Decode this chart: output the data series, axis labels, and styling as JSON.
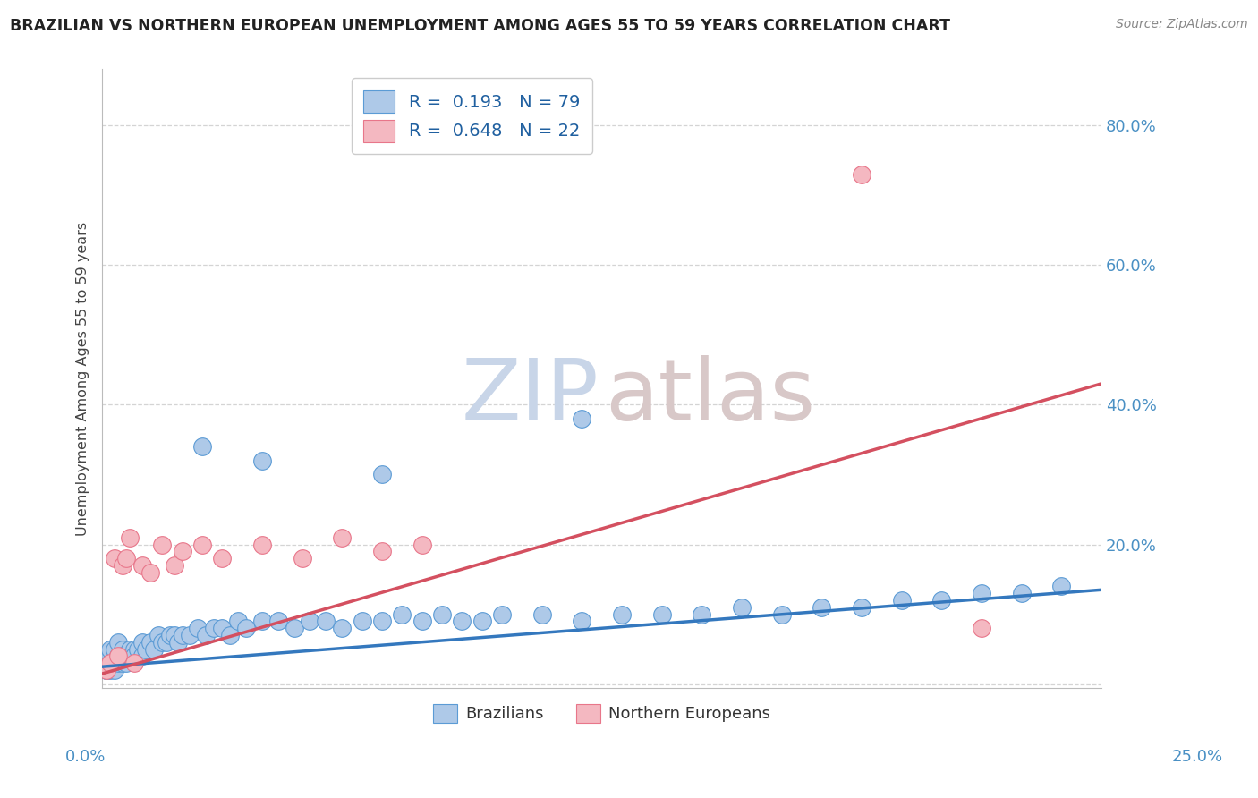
{
  "title": "BRAZILIAN VS NORTHERN EUROPEAN UNEMPLOYMENT AMONG AGES 55 TO 59 YEARS CORRELATION CHART",
  "source_text": "Source: ZipAtlas.com",
  "ylabel": "Unemployment Among Ages 55 to 59 years",
  "xlim": [
    0.0,
    0.25
  ],
  "ylim": [
    -0.005,
    0.88
  ],
  "brazil_R": 0.193,
  "brazil_N": 79,
  "northern_R": 0.648,
  "northern_N": 22,
  "blue_scatter_color": "#aec9e8",
  "blue_scatter_edge": "#5b9bd5",
  "pink_scatter_color": "#f4b8c1",
  "pink_scatter_edge": "#e8768a",
  "blue_line_color": "#3478be",
  "pink_line_color": "#d45060",
  "ytick_vals": [
    0.0,
    0.2,
    0.4,
    0.6,
    0.8
  ],
  "ytick_labels": [
    "",
    "20.0%",
    "40.0%",
    "60.0%",
    "80.0%"
  ],
  "grid_color": "#d0d0d0",
  "background": "#ffffff",
  "text_color": "#222222",
  "axis_label_color": "#4a90c4",
  "legend_text_color": "#2060a0",
  "watermark_zip_color": "#c8d5e8",
  "watermark_atlas_color": "#d8c8c8",
  "brazil_x": [
    0.001,
    0.001,
    0.001,
    0.001,
    0.001,
    0.002,
    0.002,
    0.002,
    0.002,
    0.002,
    0.003,
    0.003,
    0.003,
    0.003,
    0.004,
    0.004,
    0.004,
    0.005,
    0.005,
    0.005,
    0.006,
    0.006,
    0.007,
    0.007,
    0.008,
    0.008,
    0.009,
    0.01,
    0.01,
    0.011,
    0.012,
    0.013,
    0.014,
    0.015,
    0.016,
    0.017,
    0.018,
    0.019,
    0.02,
    0.022,
    0.024,
    0.026,
    0.028,
    0.03,
    0.032,
    0.034,
    0.036,
    0.04,
    0.044,
    0.048,
    0.052,
    0.056,
    0.06,
    0.065,
    0.07,
    0.075,
    0.08,
    0.085,
    0.09,
    0.095,
    0.1,
    0.11,
    0.12,
    0.13,
    0.14,
    0.15,
    0.16,
    0.17,
    0.18,
    0.19,
    0.2,
    0.21,
    0.22,
    0.23,
    0.24,
    0.12,
    0.07,
    0.04,
    0.025
  ],
  "brazil_y": [
    0.02,
    0.03,
    0.03,
    0.04,
    0.02,
    0.03,
    0.04,
    0.02,
    0.05,
    0.03,
    0.03,
    0.04,
    0.02,
    0.05,
    0.03,
    0.04,
    0.06,
    0.03,
    0.05,
    0.04,
    0.04,
    0.03,
    0.04,
    0.05,
    0.05,
    0.04,
    0.05,
    0.04,
    0.06,
    0.05,
    0.06,
    0.05,
    0.07,
    0.06,
    0.06,
    0.07,
    0.07,
    0.06,
    0.07,
    0.07,
    0.08,
    0.07,
    0.08,
    0.08,
    0.07,
    0.09,
    0.08,
    0.09,
    0.09,
    0.08,
    0.09,
    0.09,
    0.08,
    0.09,
    0.09,
    0.1,
    0.09,
    0.1,
    0.09,
    0.09,
    0.1,
    0.1,
    0.09,
    0.1,
    0.1,
    0.1,
    0.11,
    0.1,
    0.11,
    0.11,
    0.12,
    0.12,
    0.13,
    0.13,
    0.14,
    0.38,
    0.3,
    0.32,
    0.34
  ],
  "northern_x": [
    0.001,
    0.002,
    0.003,
    0.004,
    0.005,
    0.006,
    0.007,
    0.008,
    0.01,
    0.012,
    0.015,
    0.018,
    0.02,
    0.025,
    0.03,
    0.04,
    0.05,
    0.06,
    0.07,
    0.08,
    0.19,
    0.22
  ],
  "northern_y": [
    0.02,
    0.03,
    0.18,
    0.04,
    0.17,
    0.18,
    0.21,
    0.03,
    0.17,
    0.16,
    0.2,
    0.17,
    0.19,
    0.2,
    0.18,
    0.2,
    0.18,
    0.21,
    0.19,
    0.2,
    0.73,
    0.08
  ]
}
